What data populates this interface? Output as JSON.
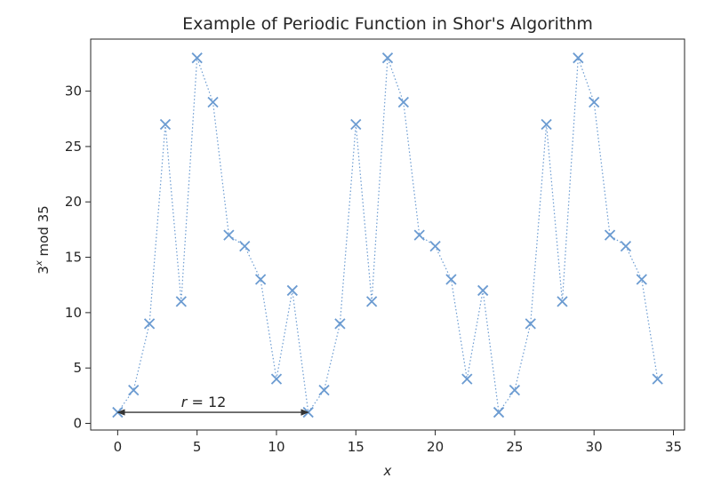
{
  "chart_data": {
    "type": "line",
    "title": "Example of Periodic Function in Shor's Algorithm",
    "xlabel": "x",
    "ylabel_base": "3",
    "ylabel_sup": "x",
    "ylabel_rest": " mod 35",
    "xlim": [
      -1.7,
      35.7
    ],
    "ylim": [
      -0.6,
      34.7
    ],
    "xticks": [
      0,
      5,
      10,
      15,
      20,
      25,
      30,
      35
    ],
    "yticks": [
      0,
      5,
      10,
      15,
      20,
      25,
      30
    ],
    "grid": false,
    "series": [
      {
        "x": [
          0,
          1,
          2,
          3,
          4,
          5,
          6,
          7,
          8,
          9,
          10,
          11,
          12,
          13,
          14,
          15,
          16,
          17,
          18,
          19,
          20,
          21,
          22,
          23,
          24,
          25,
          26,
          27,
          28,
          29,
          30,
          31,
          32,
          33,
          34
        ],
        "values": [
          1,
          3,
          9,
          27,
          11,
          33,
          29,
          17,
          16,
          13,
          4,
          12,
          1,
          3,
          9,
          27,
          11,
          33,
          29,
          17,
          16,
          13,
          4,
          12,
          1,
          3,
          9,
          27,
          11,
          33,
          29,
          17,
          16,
          13,
          4
        ],
        "color": "#6b9bd1",
        "marker": "x",
        "linestyle": "dotted"
      }
    ],
    "annotation": {
      "text_r": "r",
      "text_rest": " = 12",
      "from": [
        0,
        1
      ],
      "to": [
        12,
        1
      ],
      "text_x": 4,
      "text_y": 1.5,
      "color": "#333333"
    }
  }
}
